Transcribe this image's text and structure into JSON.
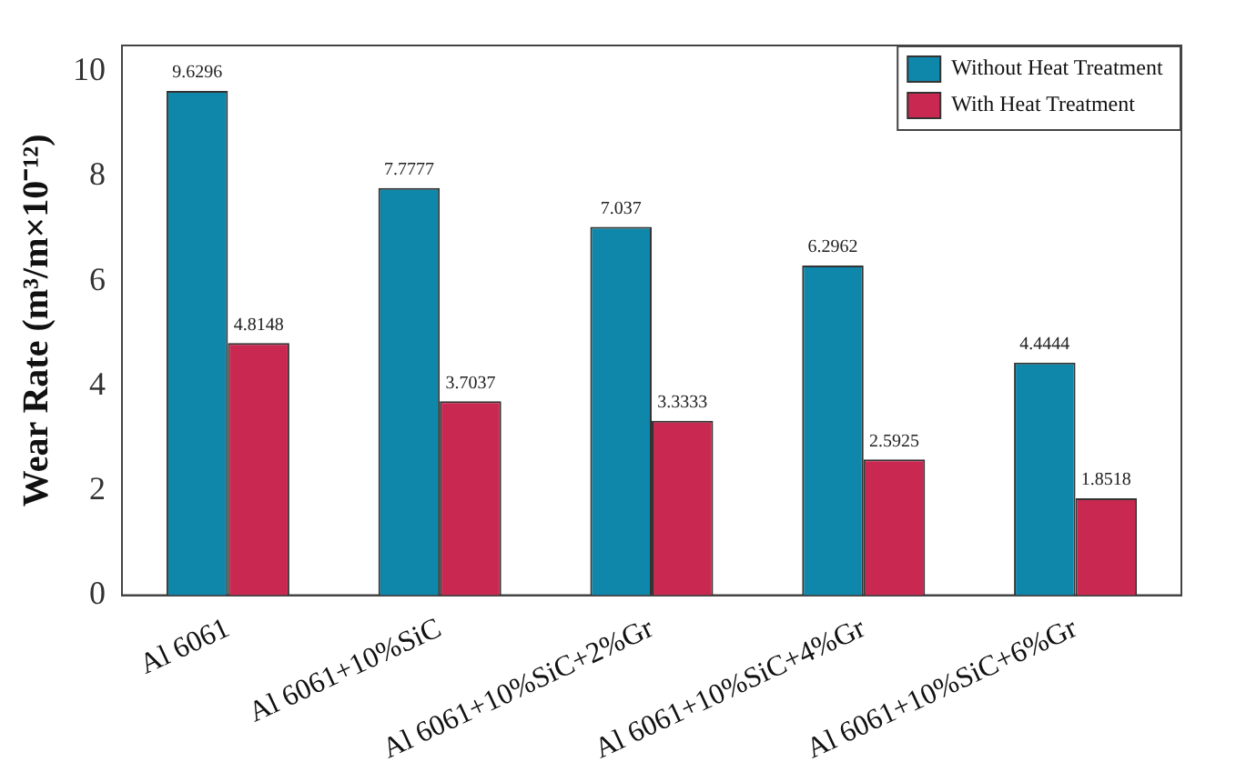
{
  "chart_data": {
    "type": "bar",
    "ylabel": "Wear Rate (m³/m×10⁻¹²)",
    "categories": [
      "Al 6061",
      "Al 6061+10%SiC",
      "Al 6061+10%SiC+2%Gr",
      "Al 6061+10%SiC+4%Gr",
      "Al 6061+10%SiC+6%Gr"
    ],
    "series": [
      {
        "name": "Without Heat Treatment",
        "color": "#0f87aa",
        "values": [
          9.6296,
          7.7777,
          7.037,
          6.2962,
          4.4444
        ]
      },
      {
        "name": "With Heat Treatment",
        "color": "#c92850",
        "values": [
          4.8148,
          3.7037,
          3.3333,
          2.5925,
          1.8518
        ]
      }
    ],
    "ylim": [
      0,
      10.5
    ],
    "yticks": [
      0,
      2,
      4,
      6,
      8,
      10
    ],
    "grid": false,
    "legend": "top right",
    "data_labels": true
  }
}
